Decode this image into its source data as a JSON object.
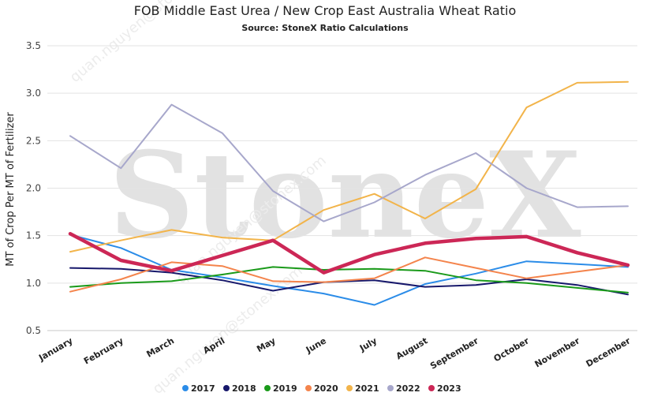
{
  "chart_data": {
    "type": "line",
    "title": "FOB Middle East Urea / New Crop East Australia Wheat Ratio",
    "subtitle": "Source: StoneX Ratio Calculations",
    "ylabel": "MT of Crop Per MT of Fertilizer",
    "xlabel": "",
    "ylim": [
      0.5,
      3.5
    ],
    "yticks": [
      "0.5",
      "1.0",
      "1.5",
      "2.0",
      "2.5",
      "3.0",
      "3.5"
    ],
    "grid": true,
    "legend_position": "bottom",
    "categories": [
      "January",
      "February",
      "March",
      "April",
      "May",
      "June",
      "July",
      "August",
      "September",
      "October",
      "November",
      "December"
    ],
    "series": [
      {
        "name": "2017",
        "color": "#2b8ce8",
        "values": [
          1.51,
          1.37,
          1.14,
          1.06,
          0.97,
          0.89,
          0.77,
          0.99,
          1.1,
          1.23,
          1.2,
          1.17
        ]
      },
      {
        "name": "2018",
        "color": "#17186b",
        "values": [
          1.16,
          1.15,
          1.11,
          1.03,
          0.92,
          1.01,
          1.03,
          0.96,
          0.98,
          1.04,
          0.98,
          0.88
        ]
      },
      {
        "name": "2019",
        "color": "#1a9a1a",
        "values": [
          0.96,
          1.0,
          1.02,
          1.09,
          1.17,
          1.14,
          1.15,
          1.13,
          1.03,
          1.0,
          0.95,
          0.9
        ]
      },
      {
        "name": "2020",
        "color": "#f4844c",
        "values": [
          0.91,
          1.04,
          1.22,
          1.18,
          1.02,
          1.01,
          1.05,
          1.27,
          1.16,
          1.05,
          1.12,
          1.19
        ]
      },
      {
        "name": "2021",
        "color": "#f2b44a",
        "values": [
          1.33,
          1.45,
          1.56,
          1.48,
          1.45,
          1.77,
          1.94,
          1.68,
          1.99,
          2.85,
          3.11,
          3.12
        ]
      },
      {
        "name": "2022",
        "color": "#a7a7cb",
        "values": [
          2.55,
          2.21,
          2.88,
          2.58,
          1.97,
          1.65,
          1.85,
          2.14,
          2.37,
          2.0,
          1.8,
          1.81
        ]
      },
      {
        "name": "2023",
        "color": "#cc2756",
        "values": [
          1.52,
          1.24,
          1.13,
          1.29,
          1.45,
          1.11,
          1.3,
          1.42,
          1.47,
          1.49,
          1.32,
          1.19
        ]
      }
    ],
    "watermark": "StoneX",
    "watermark_credit": "quan.nguyen@stonex.com"
  }
}
